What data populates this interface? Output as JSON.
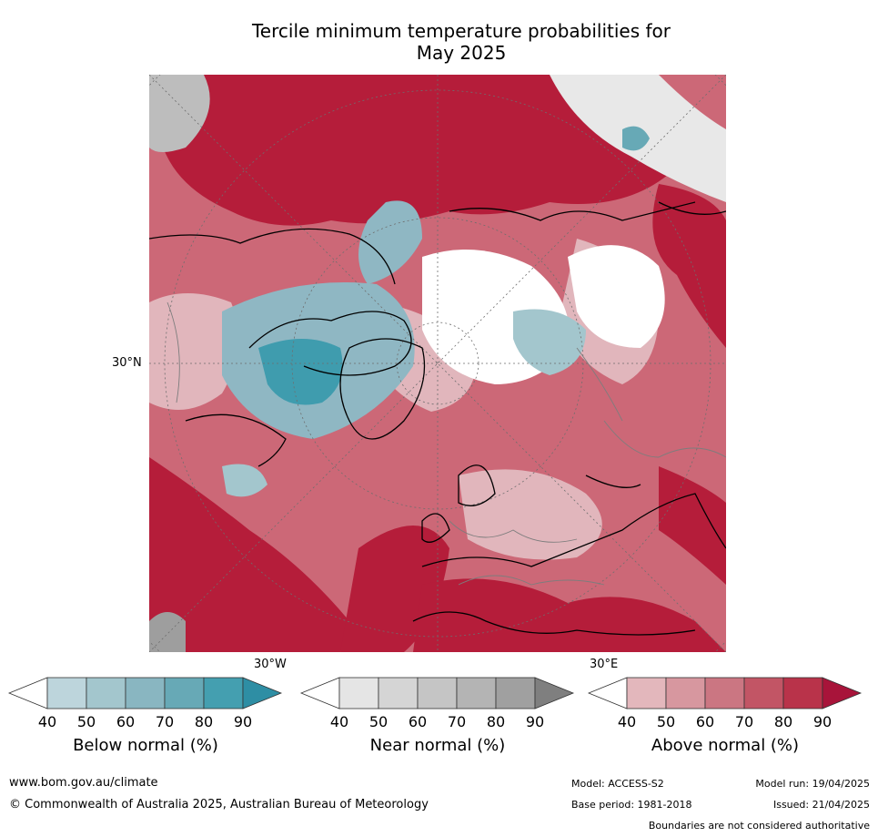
{
  "title_line1": "Tercile minimum temperature probabilities for",
  "title_line2": "May 2025",
  "map": {
    "label_30n": "30°N",
    "label_30w": "30°W",
    "label_30e": "30°E",
    "colors": {
      "above_dark": "#b51d3a",
      "above_mid": "#cc6877",
      "above_light": "#e1b6bc",
      "below_mid": "#8fb7c3",
      "below_dark": "#3f9cae",
      "near": "#dcdcdc",
      "land_outline": "#000000",
      "border": "#7d7d7d"
    }
  },
  "legends": [
    {
      "title": "Below normal (%)",
      "ticks": [
        "40",
        "50",
        "60",
        "70",
        "80",
        "90"
      ],
      "colors": [
        "#ffffff",
        "#bdd5dc",
        "#a3c6cd",
        "#89b6c1",
        "#67a9b6",
        "#449fb0",
        "#2e8ea4"
      ]
    },
    {
      "title": "Near normal (%)",
      "ticks": [
        "40",
        "50",
        "60",
        "70",
        "80",
        "90"
      ],
      "colors": [
        "#ffffff",
        "#e5e5e5",
        "#d5d5d5",
        "#c5c5c5",
        "#b4b4b4",
        "#a0a0a0",
        "#7f7f7f"
      ]
    },
    {
      "title": "Above normal (%)",
      "ticks": [
        "40",
        "50",
        "60",
        "70",
        "80",
        "90"
      ],
      "colors": [
        "#ffffff",
        "#e3b7bc",
        "#d7979f",
        "#cb7682",
        "#c25565",
        "#b9334a",
        "#a8143a"
      ]
    }
  ],
  "footer": {
    "website": "www.bom.gov.au/climate",
    "copyright": "© Commonwealth of Australia 2025, Australian Bureau of Meteorology",
    "model": "Model: ACCESS-S2",
    "model_run": "Model run: 19/04/2025",
    "base_period": "Base period: 1981-2018",
    "issued": "Issued: 21/04/2025",
    "boundaries": "Boundaries are not considered authoritative"
  }
}
